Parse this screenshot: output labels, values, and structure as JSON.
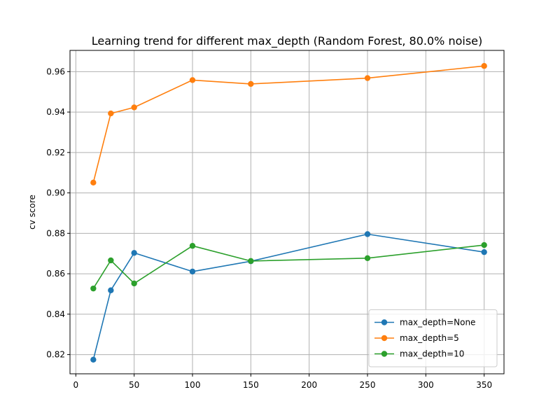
{
  "chart_data": {
    "type": "line",
    "title": "Learning trend for different max_depth (Random Forest, 80.0% noise)",
    "xlabel": "",
    "ylabel": "cv score",
    "xlim": [
      -5,
      367
    ],
    "ylim": [
      0.8105,
      0.9705
    ],
    "xticks": [
      0,
      50,
      100,
      150,
      200,
      250,
      300,
      350
    ],
    "yticks": [
      0.82,
      0.84,
      0.86,
      0.88,
      0.9,
      0.92,
      0.94,
      0.96
    ],
    "xtick_labels": [
      "0",
      "50",
      "100",
      "150",
      "200",
      "250",
      "300",
      "350"
    ],
    "ytick_labels": [
      "0.82",
      "0.84",
      "0.86",
      "0.88",
      "0.90",
      "0.92",
      "0.94",
      "0.96"
    ],
    "grid": true,
    "legend_position": "lower-right",
    "series": [
      {
        "name": "max_depth=None",
        "color": "#1f77b4",
        "x": [
          15,
          30,
          50,
          100,
          150,
          250,
          350
        ],
        "y": [
          0.8175,
          0.8518,
          0.8703,
          0.8611,
          0.8662,
          0.8796,
          0.8707
        ]
      },
      {
        "name": "max_depth=5",
        "color": "#ff7f0e",
        "x": [
          15,
          30,
          50,
          100,
          150,
          250,
          350
        ],
        "y": [
          0.9051,
          0.9393,
          0.9423,
          0.9558,
          0.9539,
          0.9568,
          0.9628
        ]
      },
      {
        "name": "max_depth=10",
        "color": "#2ca02c",
        "x": [
          15,
          30,
          50,
          100,
          150,
          250,
          350
        ],
        "y": [
          0.8527,
          0.8666,
          0.8552,
          0.8738,
          0.8663,
          0.8677,
          0.8742
        ]
      }
    ]
  }
}
